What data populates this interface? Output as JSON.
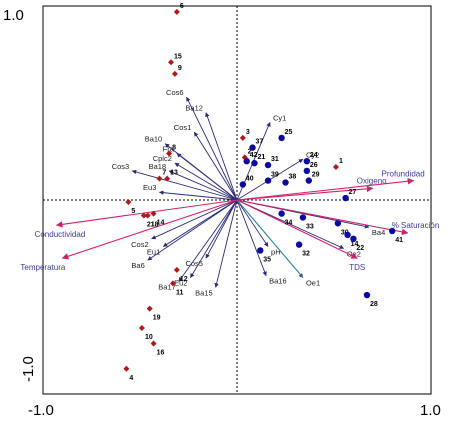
{
  "chart_data": {
    "type": "scatter",
    "title": "",
    "xlabel": "",
    "ylabel": "",
    "xlim": [
      -1.0,
      1.0
    ],
    "ylim": [
      -1.0,
      1.0
    ],
    "grid": false,
    "x_ticks": [
      "-1.0",
      "1.0"
    ],
    "y_ticks": [
      "1.0",
      "-1.0"
    ],
    "colors": {
      "species_arrow": "#2a2a78",
      "env_arrow": "#d0206a",
      "env_arrow_alt": "#2e8fa0",
      "env_label": "#3a3a9a",
      "site_group1": "#b01818",
      "site_group2": "#0a0aa0"
    },
    "species": [
      {
        "name": "Cos6",
        "x": -0.26,
        "y": 0.53
      },
      {
        "name": "Ba12",
        "x": -0.16,
        "y": 0.45
      },
      {
        "name": "Cos1",
        "x": -0.22,
        "y": 0.35
      },
      {
        "name": "Ba10",
        "x": -0.37,
        "y": 0.29
      },
      {
        "name": "Fra",
        "x": -0.31,
        "y": 0.24
      },
      {
        "name": "Cplc2",
        "x": -0.32,
        "y": 0.19
      },
      {
        "name": "Ba18",
        "x": -0.35,
        "y": 0.15
      },
      {
        "name": "Cos3",
        "x": -0.54,
        "y": 0.15
      },
      {
        "name": "Eu3",
        "x": -0.4,
        "y": 0.04
      },
      {
        "name": "Cos2",
        "x": -0.44,
        "y": -0.2
      },
      {
        "name": "Eu1",
        "x": -0.38,
        "y": -0.24
      },
      {
        "name": "Ba6",
        "x": -0.46,
        "y": -0.31
      },
      {
        "name": "Cos5",
        "x": -0.16,
        "y": -0.3
      },
      {
        "name": "Eu2",
        "x": -0.24,
        "y": -0.4
      },
      {
        "name": "Ba17",
        "x": -0.3,
        "y": -0.42
      },
      {
        "name": "Ba15",
        "x": -0.11,
        "y": -0.45
      },
      {
        "name": "Cy1",
        "x": 0.17,
        "y": 0.4
      },
      {
        "name": "Cy2",
        "x": 0.34,
        "y": 0.21
      },
      {
        "name": "pH",
        "x": 0.16,
        "y": -0.24
      },
      {
        "name": "Ba16",
        "x": 0.15,
        "y": -0.39
      },
      {
        "name": "Oe1",
        "x": 0.34,
        "y": -0.4
      },
      {
        "name": "Ba4",
        "x": 0.68,
        "y": -0.14
      },
      {
        "name": "Oe2",
        "x": 0.55,
        "y": -0.25
      }
    ],
    "environment": [
      {
        "name": "Conductividad",
        "x": -0.93,
        "y": -0.13
      },
      {
        "name": "Temperatura",
        "x": -0.9,
        "y": -0.3
      },
      {
        "name": "Oxigeno",
        "x": 0.7,
        "y": 0.06
      },
      {
        "name": "Profundidad",
        "x": 0.91,
        "y": 0.1
      },
      {
        "name": "% Saturación",
        "x": 0.88,
        "y": -0.17
      },
      {
        "name": "TDS",
        "x": 0.62,
        "y": -0.3
      }
    ],
    "sites": [
      {
        "label": "6",
        "x": -0.31,
        "y": 0.97,
        "group": 1
      },
      {
        "label": "15",
        "x": -0.34,
        "y": 0.71,
        "group": 1
      },
      {
        "label": "9",
        "x": -0.32,
        "y": 0.65,
        "group": 1
      },
      {
        "label": "8",
        "x": -0.35,
        "y": 0.24,
        "group": 1
      },
      {
        "label": "3",
        "x": 0.03,
        "y": 0.32,
        "group": 1
      },
      {
        "label": "2",
        "x": 0.04,
        "y": 0.22,
        "group": 1
      },
      {
        "label": "7",
        "x": -0.4,
        "y": 0.11,
        "group": 1
      },
      {
        "label": "13",
        "x": -0.36,
        "y": 0.11,
        "group": 1
      },
      {
        "label": "5",
        "x": -0.56,
        "y": -0.01,
        "group": 1
      },
      {
        "label": "14",
        "x": -0.43,
        "y": -0.07,
        "group": 1
      },
      {
        "label": "18",
        "x": -0.46,
        "y": -0.08,
        "group": 1
      },
      {
        "label": "21",
        "x": -0.48,
        "y": -0.08,
        "group": 1
      },
      {
        "label": "11",
        "x": -0.33,
        "y": -0.43,
        "group": 1
      },
      {
        "label": "12",
        "x": -0.31,
        "y": -0.36,
        "group": 1
      },
      {
        "label": "19",
        "x": -0.45,
        "y": -0.56,
        "group": 1
      },
      {
        "label": "10",
        "x": -0.49,
        "y": -0.66,
        "group": 1
      },
      {
        "label": "16",
        "x": -0.43,
        "y": -0.74,
        "group": 1
      },
      {
        "label": "4",
        "x": -0.57,
        "y": -0.87,
        "group": 1
      },
      {
        "label": "1",
        "x": 0.51,
        "y": 0.17,
        "group": 1
      },
      {
        "label": "37",
        "x": 0.08,
        "y": 0.27,
        "group": 2
      },
      {
        "label": "25",
        "x": 0.23,
        "y": 0.32,
        "group": 2
      },
      {
        "label": "42",
        "x": 0.05,
        "y": 0.2,
        "group": 2
      },
      {
        "label": "21",
        "x": 0.09,
        "y": 0.19,
        "group": 2
      },
      {
        "label": "31",
        "x": 0.16,
        "y": 0.18,
        "group": 2
      },
      {
        "label": "24",
        "x": 0.36,
        "y": 0.2,
        "group": 2
      },
      {
        "label": "26",
        "x": 0.36,
        "y": 0.15,
        "group": 2
      },
      {
        "label": "40",
        "x": 0.03,
        "y": 0.08,
        "group": 2
      },
      {
        "label": "39",
        "x": 0.16,
        "y": 0.1,
        "group": 2
      },
      {
        "label": "38",
        "x": 0.25,
        "y": 0.09,
        "group": 2
      },
      {
        "label": "29",
        "x": 0.37,
        "y": 0.1,
        "group": 2
      },
      {
        "label": "27",
        "x": 0.56,
        "y": 0.01,
        "group": 2
      },
      {
        "label": "34",
        "x": 0.23,
        "y": -0.07,
        "group": 2
      },
      {
        "label": "33",
        "x": 0.34,
        "y": -0.09,
        "group": 2
      },
      {
        "label": "30",
        "x": 0.52,
        "y": -0.12,
        "group": 2
      },
      {
        "label": "14",
        "x": 0.57,
        "y": -0.18,
        "group": 2
      },
      {
        "label": "22",
        "x": 0.6,
        "y": -0.2,
        "group": 2
      },
      {
        "label": "41",
        "x": 0.8,
        "y": -0.16,
        "group": 2
      },
      {
        "label": "35",
        "x": 0.12,
        "y": -0.26,
        "group": 2
      },
      {
        "label": "32",
        "x": 0.32,
        "y": -0.23,
        "group": 2
      },
      {
        "label": "28",
        "x": 0.67,
        "y": -0.49,
        "group": 2
      }
    ]
  }
}
